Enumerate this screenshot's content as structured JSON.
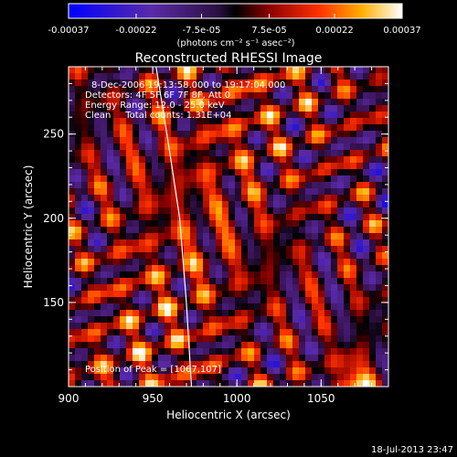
{
  "chart_data": {
    "type": "heatmap",
    "title": "Reconstructed RHESSI Image",
    "xlabel": "Heliocentric X (arcsec)",
    "ylabel": "Heliocentric Y (arcsec)",
    "xlim": [
      900,
      1090
    ],
    "ylim": [
      100,
      290
    ],
    "x_ticks": [
      900,
      950,
      1000,
      1050
    ],
    "y_ticks": [
      150,
      200,
      250
    ],
    "colorbar": {
      "range": [
        -0.00037,
        0.00037
      ],
      "tick_labels": [
        "-0.00037",
        "-0.00022",
        "-7.5e-05",
        "7.5e-05",
        "0.00022",
        "0.00037"
      ],
      "tick_values": [
        -0.00037,
        -0.00022,
        -7.5e-05,
        7.5e-05,
        0.00022,
        0.00037
      ],
      "units": "(photons cm⁻² s⁻¹ asec⁻²)"
    },
    "annotations": {
      "time_range": "8-Dec-2006 19:13:58.000 to 19:17:04.000",
      "detectors": "Detectors: 4F 5F 6F 7F 8F, Att 0",
      "energy_range": "Energy Range: 12.0 - 25.0 keV",
      "method_counts": "Clean     Total counts: 1.31E+04",
      "peak": "Position of Peak = [1067,107]"
    },
    "peak_position": [
      1067,
      107
    ],
    "limb_curve": [
      [
        952,
        290
      ],
      [
        960,
        240
      ],
      [
        966,
        200
      ],
      [
        970,
        150
      ],
      [
        973,
        100
      ]
    ]
  },
  "footer": {
    "date": "18-Jul-2013 23:47"
  }
}
